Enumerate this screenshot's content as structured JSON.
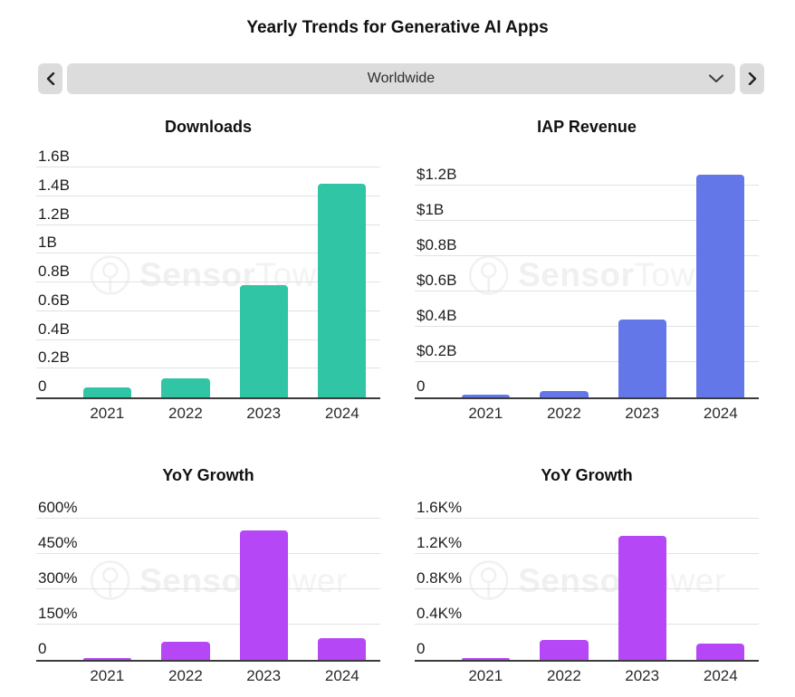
{
  "header": {
    "title": "Yearly Trends for Generative AI Apps"
  },
  "nav": {
    "region_value": "Worldwide"
  },
  "watermark": {
    "bold": "Sensor",
    "light": "Tower"
  },
  "colors": {
    "downloads_bar": "#2fc5a5",
    "revenue_bar": "#6377e8",
    "growth_bar": "#b547f7",
    "gridline": "#e2e2e2",
    "axis": "#3b3b3b",
    "control_bg": "#dcdcdc"
  },
  "chart_data": [
    {
      "type": "bar",
      "title": "Downloads",
      "categories": [
        "2021",
        "2022",
        "2023",
        "2024"
      ],
      "values": [
        0.07,
        0.13,
        0.78,
        1.49
      ],
      "ylim": [
        0,
        1.72
      ],
      "ymax": 1.72,
      "grid": true,
      "legend": false,
      "bar_color": "#2fc5a5",
      "yticks": [
        {
          "v": 0,
          "label": "0"
        },
        {
          "v": 0.2,
          "label": "0.2B"
        },
        {
          "v": 0.4,
          "label": "0.4B"
        },
        {
          "v": 0.6,
          "label": "0.6B"
        },
        {
          "v": 0.8,
          "label": "0.8B"
        },
        {
          "v": 1.0,
          "label": "1B"
        },
        {
          "v": 1.2,
          "label": "1.2B"
        },
        {
          "v": 1.4,
          "label": "1.4B"
        },
        {
          "v": 1.6,
          "label": "1.6B"
        }
      ]
    },
    {
      "type": "bar",
      "title": "IAP Revenue",
      "categories": [
        "2021",
        "2022",
        "2023",
        "2024"
      ],
      "values": [
        0.015,
        0.035,
        0.44,
        1.26
      ],
      "ylim": [
        0,
        1.4
      ],
      "ymax": 1.4,
      "grid": true,
      "legend": false,
      "bar_color": "#6377e8",
      "yticks": [
        {
          "v": 0,
          "label": "0"
        },
        {
          "v": 0.2,
          "label": "$0.2B"
        },
        {
          "v": 0.4,
          "label": "$0.4B"
        },
        {
          "v": 0.6,
          "label": "$0.6B"
        },
        {
          "v": 0.8,
          "label": "$0.8B"
        },
        {
          "v": 1.0,
          "label": "$1B"
        },
        {
          "v": 1.2,
          "label": "$1.2B"
        }
      ]
    },
    {
      "type": "bar",
      "title": "YoY Growth",
      "categories": [
        "2021",
        "2022",
        "2023",
        "2024"
      ],
      "values": [
        8,
        78,
        550,
        93
      ],
      "ylim": [
        0,
        685
      ],
      "ymax": 685,
      "grid": true,
      "legend": false,
      "bar_color": "#b547f7",
      "yticks": [
        {
          "v": 0,
          "label": "0"
        },
        {
          "v": 150,
          "label": "150%"
        },
        {
          "v": 300,
          "label": "300%"
        },
        {
          "v": 450,
          "label": "450%"
        },
        {
          "v": 600,
          "label": "600%"
        }
      ]
    },
    {
      "type": "bar",
      "title": "YoY Growth",
      "categories": [
        "2021",
        "2022",
        "2023",
        "2024"
      ],
      "values": [
        20,
        230,
        1400,
        185
      ],
      "ylim": [
        0,
        1820
      ],
      "ymax": 1820,
      "grid": true,
      "legend": false,
      "bar_color": "#b547f7",
      "yticks": [
        {
          "v": 0,
          "label": "0"
        },
        {
          "v": 400,
          "label": "0.4K%"
        },
        {
          "v": 800,
          "label": "0.8K%"
        },
        {
          "v": 1200,
          "label": "1.2K%"
        },
        {
          "v": 1600,
          "label": "1.6K%"
        }
      ]
    }
  ]
}
